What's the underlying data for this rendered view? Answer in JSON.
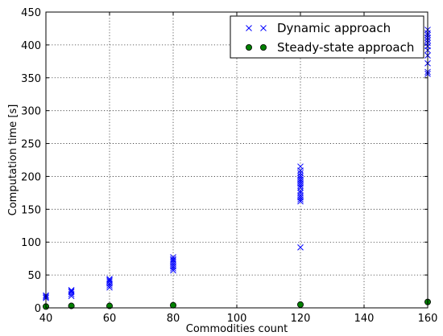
{
  "chart_data": {
    "type": "scatter",
    "title": "",
    "xlabel": "Commodities count",
    "ylabel": "Computation time [s]",
    "xlim": [
      40,
      160
    ],
    "ylim": [
      0,
      450
    ],
    "xticks": [
      40,
      60,
      80,
      100,
      120,
      140,
      160
    ],
    "yticks": [
      0,
      50,
      100,
      150,
      200,
      250,
      300,
      350,
      400,
      450
    ],
    "grid": true,
    "legend_position": "top-right",
    "series": [
      {
        "name": "Dynamic approach",
        "marker": "x",
        "color": "#0000ff",
        "points": [
          [
            40,
            15
          ],
          [
            40,
            17
          ],
          [
            40,
            19
          ],
          [
            48,
            18
          ],
          [
            48,
            21
          ],
          [
            48,
            24
          ],
          [
            48,
            26
          ],
          [
            48,
            27
          ],
          [
            60,
            31
          ],
          [
            60,
            34
          ],
          [
            60,
            37
          ],
          [
            60,
            40
          ],
          [
            60,
            42
          ],
          [
            60,
            44
          ],
          [
            80,
            57
          ],
          [
            80,
            60
          ],
          [
            80,
            63
          ],
          [
            80,
            66
          ],
          [
            80,
            69
          ],
          [
            80,
            72
          ],
          [
            80,
            74
          ],
          [
            80,
            77
          ],
          [
            120,
            92
          ],
          [
            120,
            162
          ],
          [
            120,
            165
          ],
          [
            120,
            168
          ],
          [
            120,
            171
          ],
          [
            120,
            175
          ],
          [
            120,
            178
          ],
          [
            120,
            183
          ],
          [
            120,
            186
          ],
          [
            120,
            189
          ],
          [
            120,
            192
          ],
          [
            120,
            195
          ],
          [
            120,
            198
          ],
          [
            120,
            201
          ],
          [
            120,
            205
          ],
          [
            120,
            209
          ],
          [
            120,
            215
          ],
          [
            160,
            356
          ],
          [
            160,
            359
          ],
          [
            160,
            372
          ],
          [
            160,
            384
          ],
          [
            160,
            392
          ],
          [
            160,
            398
          ],
          [
            160,
            403
          ],
          [
            160,
            407
          ],
          [
            160,
            411
          ],
          [
            160,
            415
          ],
          [
            160,
            418
          ],
          [
            160,
            423
          ]
        ]
      },
      {
        "name": "Steady-state approach",
        "marker": "o",
        "color": "#008000",
        "points": [
          [
            40,
            2
          ],
          [
            48,
            3
          ],
          [
            60,
            3
          ],
          [
            80,
            4
          ],
          [
            120,
            5
          ],
          [
            160,
            9
          ]
        ]
      }
    ]
  }
}
